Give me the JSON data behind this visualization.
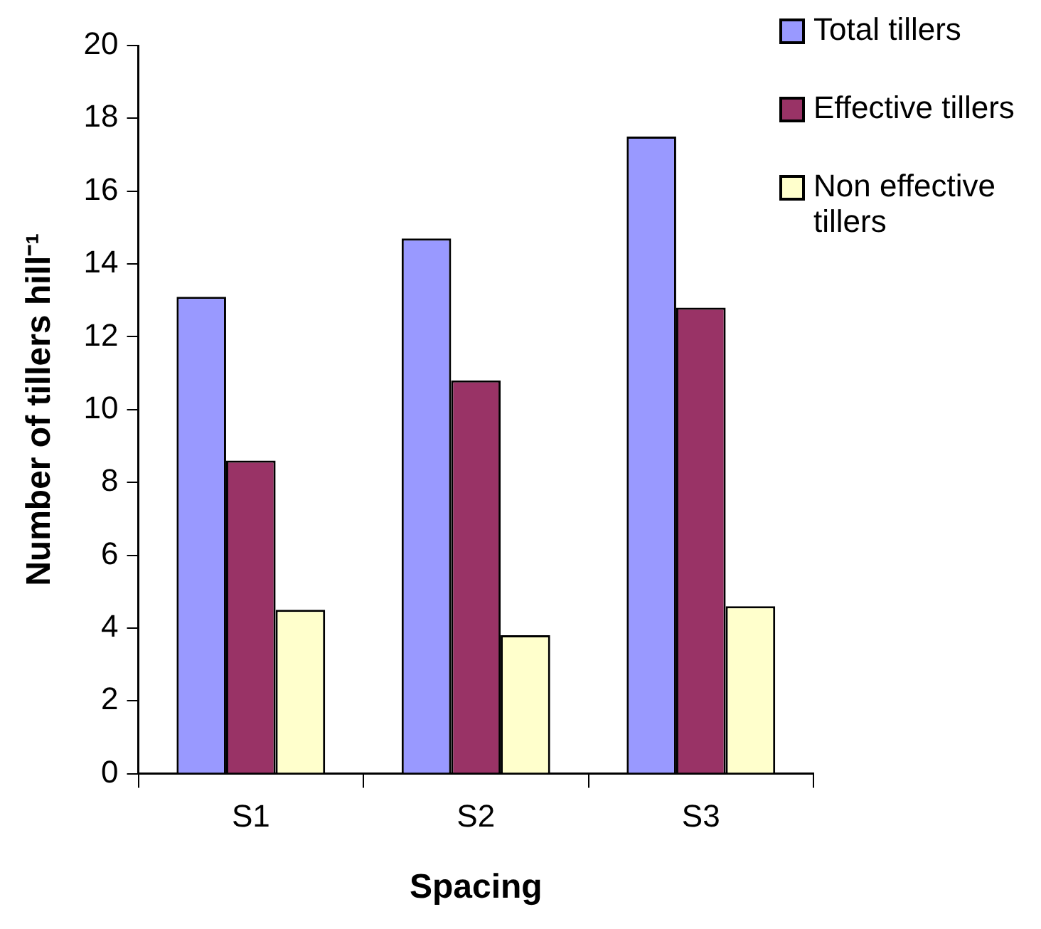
{
  "chart_data": {
    "type": "bar",
    "xlabel": "Spacing",
    "ylabel": "Number of tillers hill⁻¹",
    "categories": [
      "S1",
      "S2",
      "S3"
    ],
    "series": [
      {
        "name": "Total tillers",
        "color": "#9999ff",
        "values": [
          13.1,
          14.7,
          17.5
        ]
      },
      {
        "name": "Effective tillers",
        "color": "#993366",
        "values": [
          8.6,
          10.8,
          12.8
        ]
      },
      {
        "name": "Non effective tillers",
        "color": "#ffffcc",
        "values": [
          4.5,
          3.8,
          4.6
        ]
      }
    ],
    "ylim": [
      0,
      20
    ],
    "yticks": [
      0,
      2,
      4,
      6,
      8,
      10,
      12,
      14,
      16,
      18,
      20
    ],
    "grid": false,
    "legend": "top right"
  }
}
